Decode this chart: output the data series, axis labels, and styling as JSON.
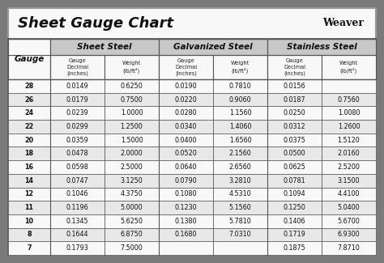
{
  "title": "Sheet Gauge Chart",
  "bg_outer": "#7a7a7a",
  "bg_white": "#f8f8f8",
  "bg_header_gray": "#c8c8c8",
  "bg_row_light": "#e8e8e8",
  "bg_row_white": "#f8f8f8",
  "border_color": "#555555",
  "gauges": [
    28,
    26,
    24,
    22,
    20,
    18,
    16,
    14,
    12,
    11,
    10,
    8,
    7
  ],
  "sheet_steel_dec": [
    "0.0149",
    "0.0179",
    "0.0239",
    "0.0299",
    "0.0359",
    "0.0478",
    "0.0598",
    "0.0747",
    "0.1046",
    "0.1196",
    "0.1345",
    "0.1644",
    "0.1793"
  ],
  "sheet_steel_wt": [
    "0.6250",
    "0.7500",
    "1.0000",
    "1.2500",
    "1.5000",
    "2.0000",
    "2.5000",
    "3.1250",
    "4.3750",
    "5.0000",
    "5.6250",
    "6.8750",
    "7.5000"
  ],
  "galv_dec": [
    "0.0190",
    "0.0220",
    "0.0280",
    "0.0340",
    "0.0400",
    "0.0520",
    "0.0640",
    "0.0790",
    "0.1080",
    "0.1230",
    "0.1380",
    "0.1680",
    ""
  ],
  "galv_wt": [
    "0.7810",
    "0.9060",
    "1.1560",
    "1.4060",
    "1.6560",
    "2.1560",
    "2.6560",
    "3.2810",
    "4.5310",
    "5.1560",
    "5.7810",
    "7.0310",
    ""
  ],
  "stain_dec": [
    "0.0156",
    "0.0187",
    "0.0250",
    "0.0312",
    "0.0375",
    "0.0500",
    "0.0625",
    "0.0781",
    "0.1094",
    "0.1250",
    "0.1406",
    "0.1719",
    "0.1875"
  ],
  "stain_wt": [
    "",
    "0.7560",
    "1.0080",
    "1.2600",
    "1.5120",
    "2.0160",
    "2.5200",
    "3.1500",
    "4.4100",
    "5.0400",
    "5.6700",
    "6.9300",
    "7.8710"
  ]
}
